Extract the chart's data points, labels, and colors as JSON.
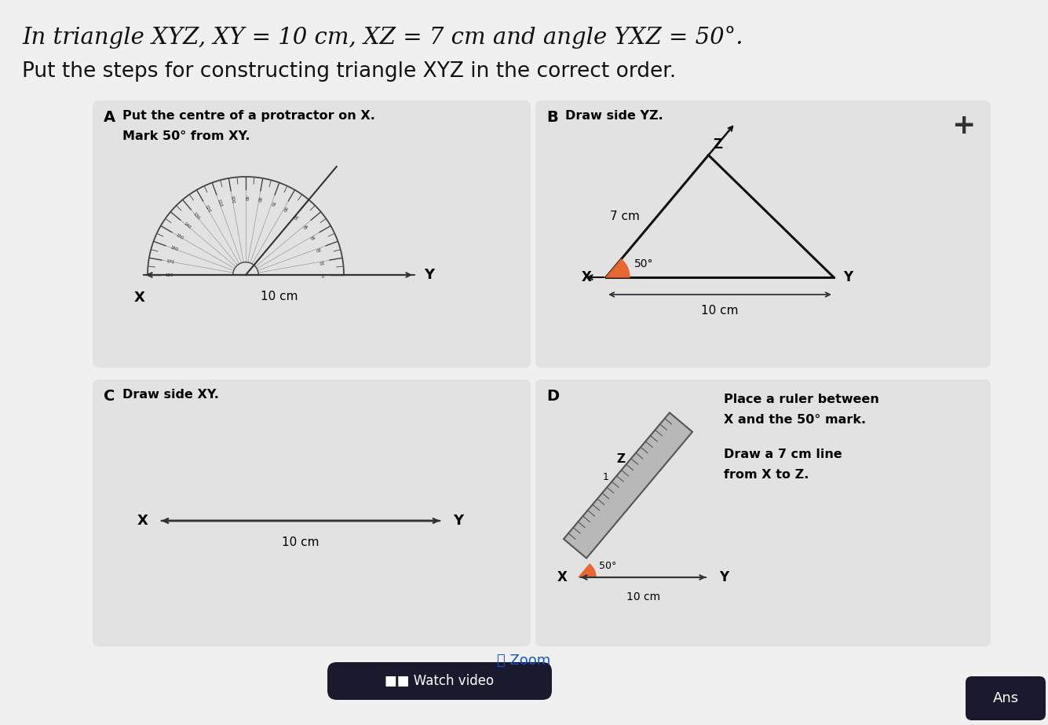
{
  "title_line1": "In triangle XYZ, XY = 10 cm, XZ = 7 cm and angle YXZ = 50°.",
  "title_line2": "Put the steps for constructing triangle XYZ in the correct order.",
  "panel_A_label": "A",
  "panel_A_text1": "Put the centre of a protractor on X.",
  "panel_A_text2": "Mark 50° from XY.",
  "panel_A_dim": "10 cm",
  "panel_B_label": "B",
  "panel_B_text": "Draw side YZ.",
  "panel_B_dim_xz": "7 cm",
  "panel_B_dim_xy": "10 cm",
  "panel_B_angle": "50°",
  "panel_C_label": "C",
  "panel_C_text": "Draw side XY.",
  "panel_C_dim": "10 cm",
  "panel_D_label": "D",
  "panel_D_text1": "Place a ruler between",
  "panel_D_text2": "X and the 50° mark.",
  "panel_D_text3": "Draw a 7 cm line",
  "panel_D_text4": "from X to Z.",
  "panel_D_dim": "10 cm",
  "panel_D_angle": "50°",
  "plus_symbol": "+",
  "zoom_text": "Zoom",
  "watch_text": "Watch video",
  "ans_text": "Ans",
  "orange_color": "#e8622a",
  "bg_color": "#f0f0f0",
  "card_color": "#e2e2e2",
  "text_dark": "#111111",
  "line_color": "#333333"
}
